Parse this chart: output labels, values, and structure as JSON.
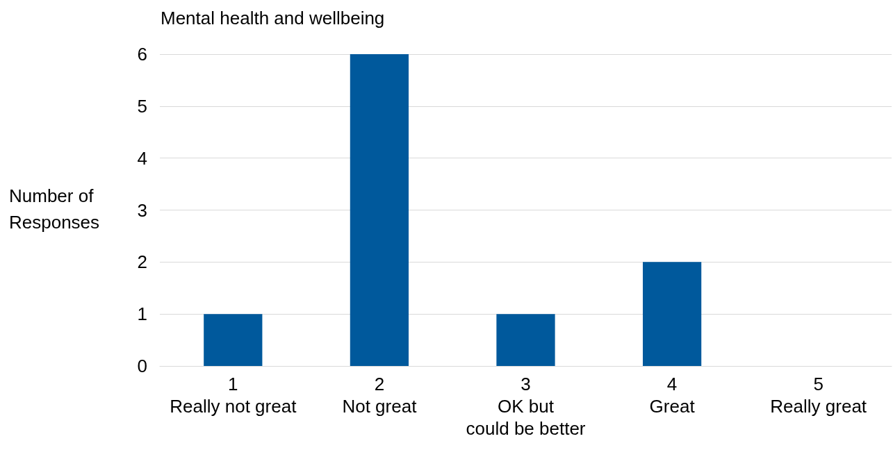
{
  "chart_data": {
    "type": "bar",
    "title": "Mental health and wellbeing",
    "ylabel": "Number of\nResponses",
    "categories": [
      "1\nReally not great",
      "2\nNot great",
      "3\nOK but\ncould be better",
      "4\nGreat",
      "5\nReally great"
    ],
    "values": [
      1,
      6,
      1,
      2,
      0
    ],
    "color": "#00599c",
    "ylim": [
      0,
      6
    ],
    "yticks": [
      0,
      1,
      2,
      3,
      4,
      5,
      6
    ],
    "grid": "y"
  }
}
